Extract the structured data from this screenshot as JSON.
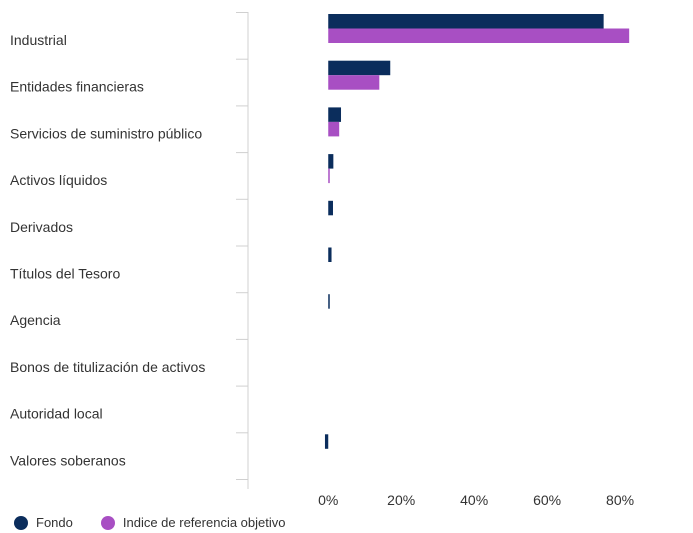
{
  "chart_data": {
    "type": "bar",
    "orientation": "horizontal",
    "title": "",
    "xlabel": "",
    "ylabel": "",
    "categories": [
      "Industrial",
      "Entidades financieras",
      "Servicios de suministro público",
      "Activos líquidos",
      "Derivados",
      "Títulos del Tesoro",
      "Agencia",
      "Bonos de titulización de activos",
      "Autoridad local",
      "Valores soberanos"
    ],
    "series": [
      {
        "name": "Fondo",
        "color": "#0b2d5c",
        "values": [
          75.5,
          17.0,
          3.5,
          1.4,
          1.3,
          0.9,
          0.3,
          0.0,
          0.0,
          -0.9
        ]
      },
      {
        "name": "Indice de referencia objetivo",
        "color": "#a84fc3",
        "values": [
          82.5,
          14.0,
          3.0,
          0.4,
          0.0,
          0.0,
          0.0,
          0.0,
          0.0,
          0.0
        ]
      }
    ],
    "xlim": [
      -22,
      100
    ],
    "xticks": [
      0,
      20,
      40,
      60,
      80
    ],
    "xtick_labels": [
      "0%",
      "20%",
      "40%",
      "60%",
      "80%"
    ],
    "grid": false,
    "legend_position": "bottom-left"
  }
}
